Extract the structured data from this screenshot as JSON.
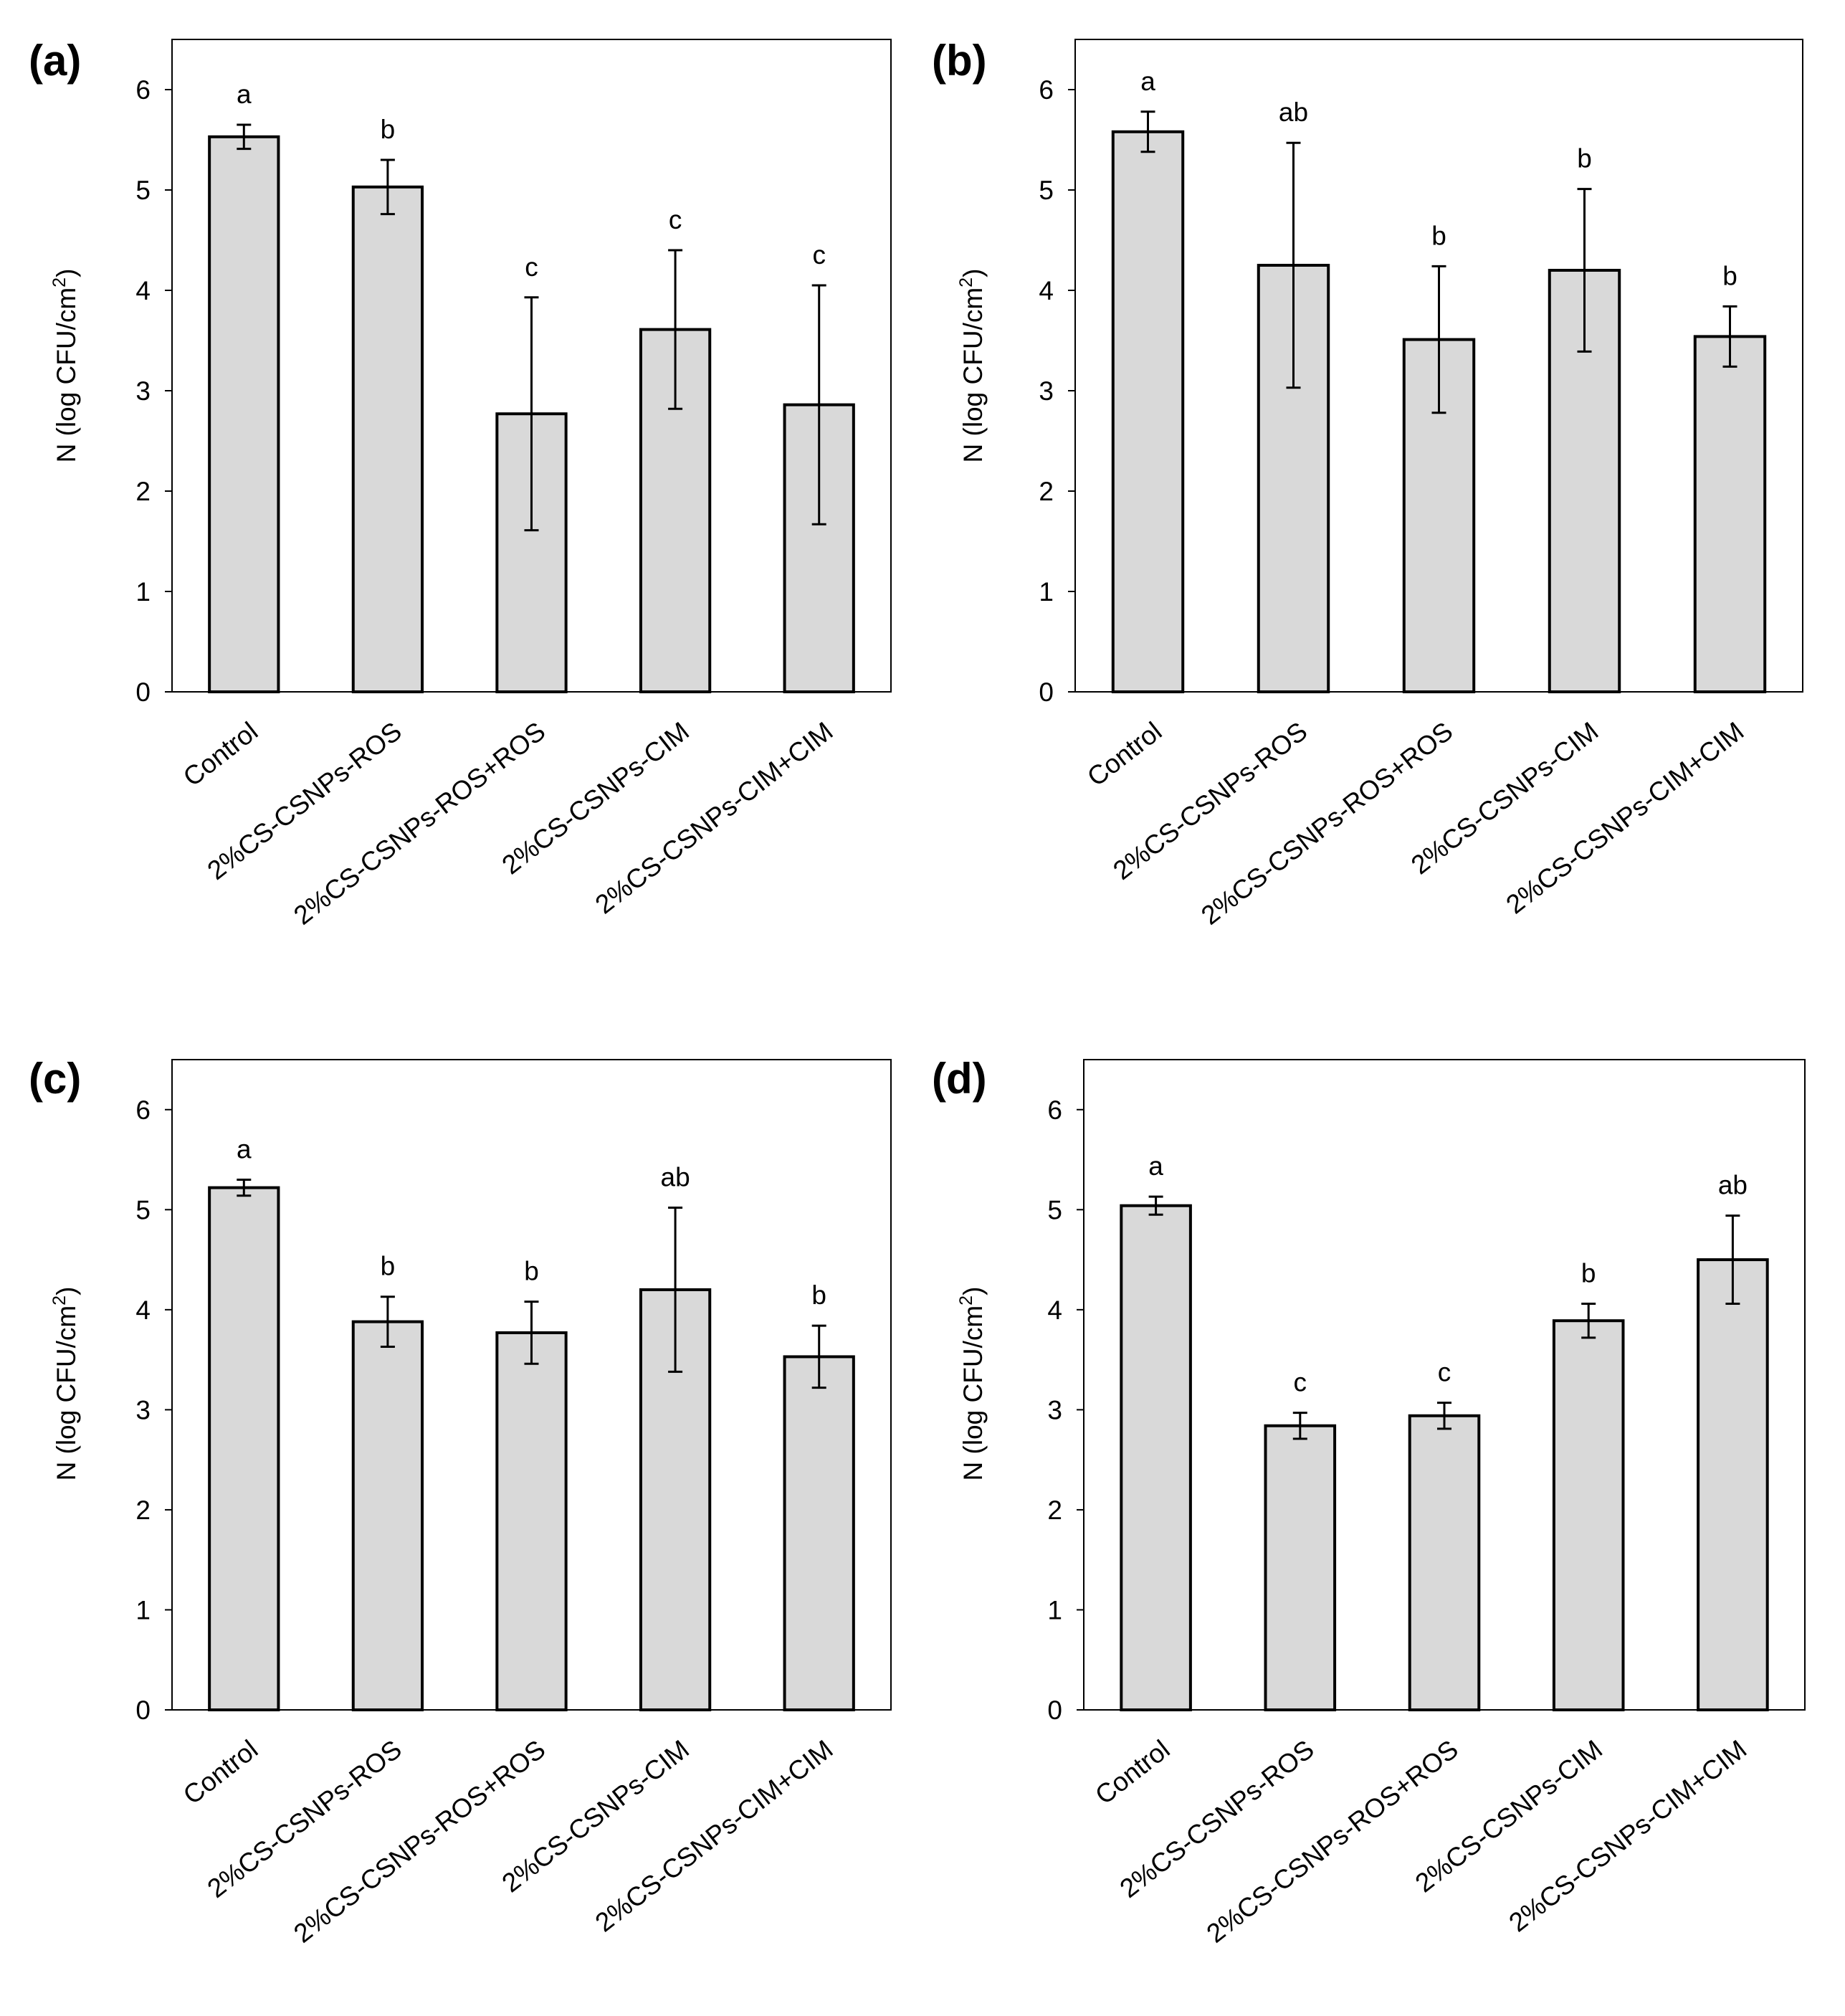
{
  "figure": {
    "ylabel_prefix": "N (log CFU/cm",
    "ylabel_sup": "2",
    "ylabel_suffix": ")"
  },
  "colors": {
    "bar_fill": "#d9d9d9",
    "bar_stroke": "#000000"
  },
  "chart_data": [
    {
      "panel": "(a)",
      "type": "bar",
      "categories": [
        "Control",
        "2%CS-CSNPs-ROS",
        "2%CS-CSNPs-ROS+ROS",
        "2%CS-CSNPs-CIM",
        "2%CS-CSNPs-CIM+CIM"
      ],
      "values": [
        5.53,
        5.03,
        2.77,
        3.61,
        2.86
      ],
      "errors": [
        0.12,
        0.27,
        1.16,
        0.79,
        1.19
      ],
      "significance": [
        "a",
        "b",
        "c",
        "c",
        "c"
      ],
      "yticks": [
        "0",
        "1",
        "2",
        "3",
        "4",
        "5",
        "6"
      ],
      "ylim": [
        0,
        6.5
      ],
      "ylabel": "N (log CFU/cm2)"
    },
    {
      "panel": "(b)",
      "type": "bar",
      "categories": [
        "Control",
        "2%CS-CSNPs-ROS",
        "2%CS-CSNPs-ROS+ROS",
        "2%CS-CSNPs-CIM",
        "2%CS-CSNPs-CIM+CIM"
      ],
      "values": [
        5.58,
        4.25,
        3.51,
        4.2,
        3.54
      ],
      "errors": [
        0.2,
        1.22,
        0.73,
        0.81,
        0.3
      ],
      "significance": [
        "a",
        "ab",
        "b",
        "b",
        "b"
      ],
      "yticks": [
        "0",
        "1",
        "2",
        "3",
        "4",
        "5",
        "6"
      ],
      "ylim": [
        0,
        6.5
      ],
      "ylabel": "N (log CFU/cm2)"
    },
    {
      "panel": "(c)",
      "type": "bar",
      "categories": [
        "Control",
        "2%CS-CSNPs-ROS",
        "2%CS-CSNPs-ROS+ROS",
        "2%CS-CSNPs-CIM",
        "2%CS-CSNPs-CIM+CIM"
      ],
      "values": [
        5.22,
        3.88,
        3.77,
        4.2,
        3.53
      ],
      "errors": [
        0.08,
        0.25,
        0.31,
        0.82,
        0.31
      ],
      "significance": [
        "a",
        "b",
        "b",
        "ab",
        "b"
      ],
      "yticks": [
        "0",
        "1",
        "2",
        "3",
        "4",
        "5",
        "6"
      ],
      "ylim": [
        0,
        6.5
      ],
      "ylabel": "N (log CFU/cm2)"
    },
    {
      "panel": "(d)",
      "type": "bar",
      "categories": [
        "Control",
        "2%CS-CSNPs-ROS",
        "2%CS-CSNPs-ROS+ROS",
        "2%CS-CSNPs-CIM",
        "2%CS-CSNPs-CIM+CIM"
      ],
      "values": [
        5.04,
        2.84,
        2.94,
        3.89,
        4.5
      ],
      "errors": [
        0.09,
        0.13,
        0.13,
        0.17,
        0.44
      ],
      "significance": [
        "a",
        "c",
        "c",
        "b",
        "ab"
      ],
      "yticks": [
        "0",
        "1",
        "2",
        "3",
        "4",
        "5",
        "6"
      ],
      "ylim": [
        0,
        6.5
      ],
      "ylabel": "N (log CFU/cm2)"
    }
  ]
}
